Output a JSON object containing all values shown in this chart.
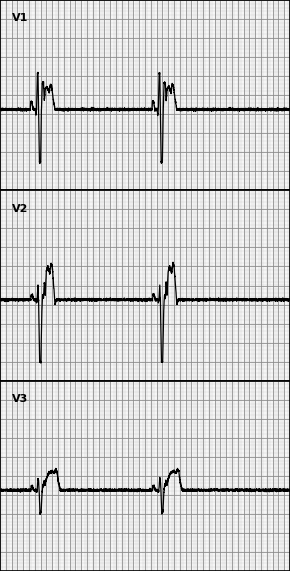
{
  "background_color": "#ffffff",
  "grid_major_color": "#888888",
  "grid_minor_color": "#bbbbbb",
  "ecg_color": "#000000",
  "border_color": "#000000",
  "label_color": "#000000",
  "figsize": [
    2.9,
    5.71
  ],
  "dpi": 100,
  "labels": [
    "V1",
    "V2",
    "V3"
  ],
  "num_leads": 3,
  "total_time": 10.0,
  "minor_step": 0.04,
  "major_step": 0.2
}
